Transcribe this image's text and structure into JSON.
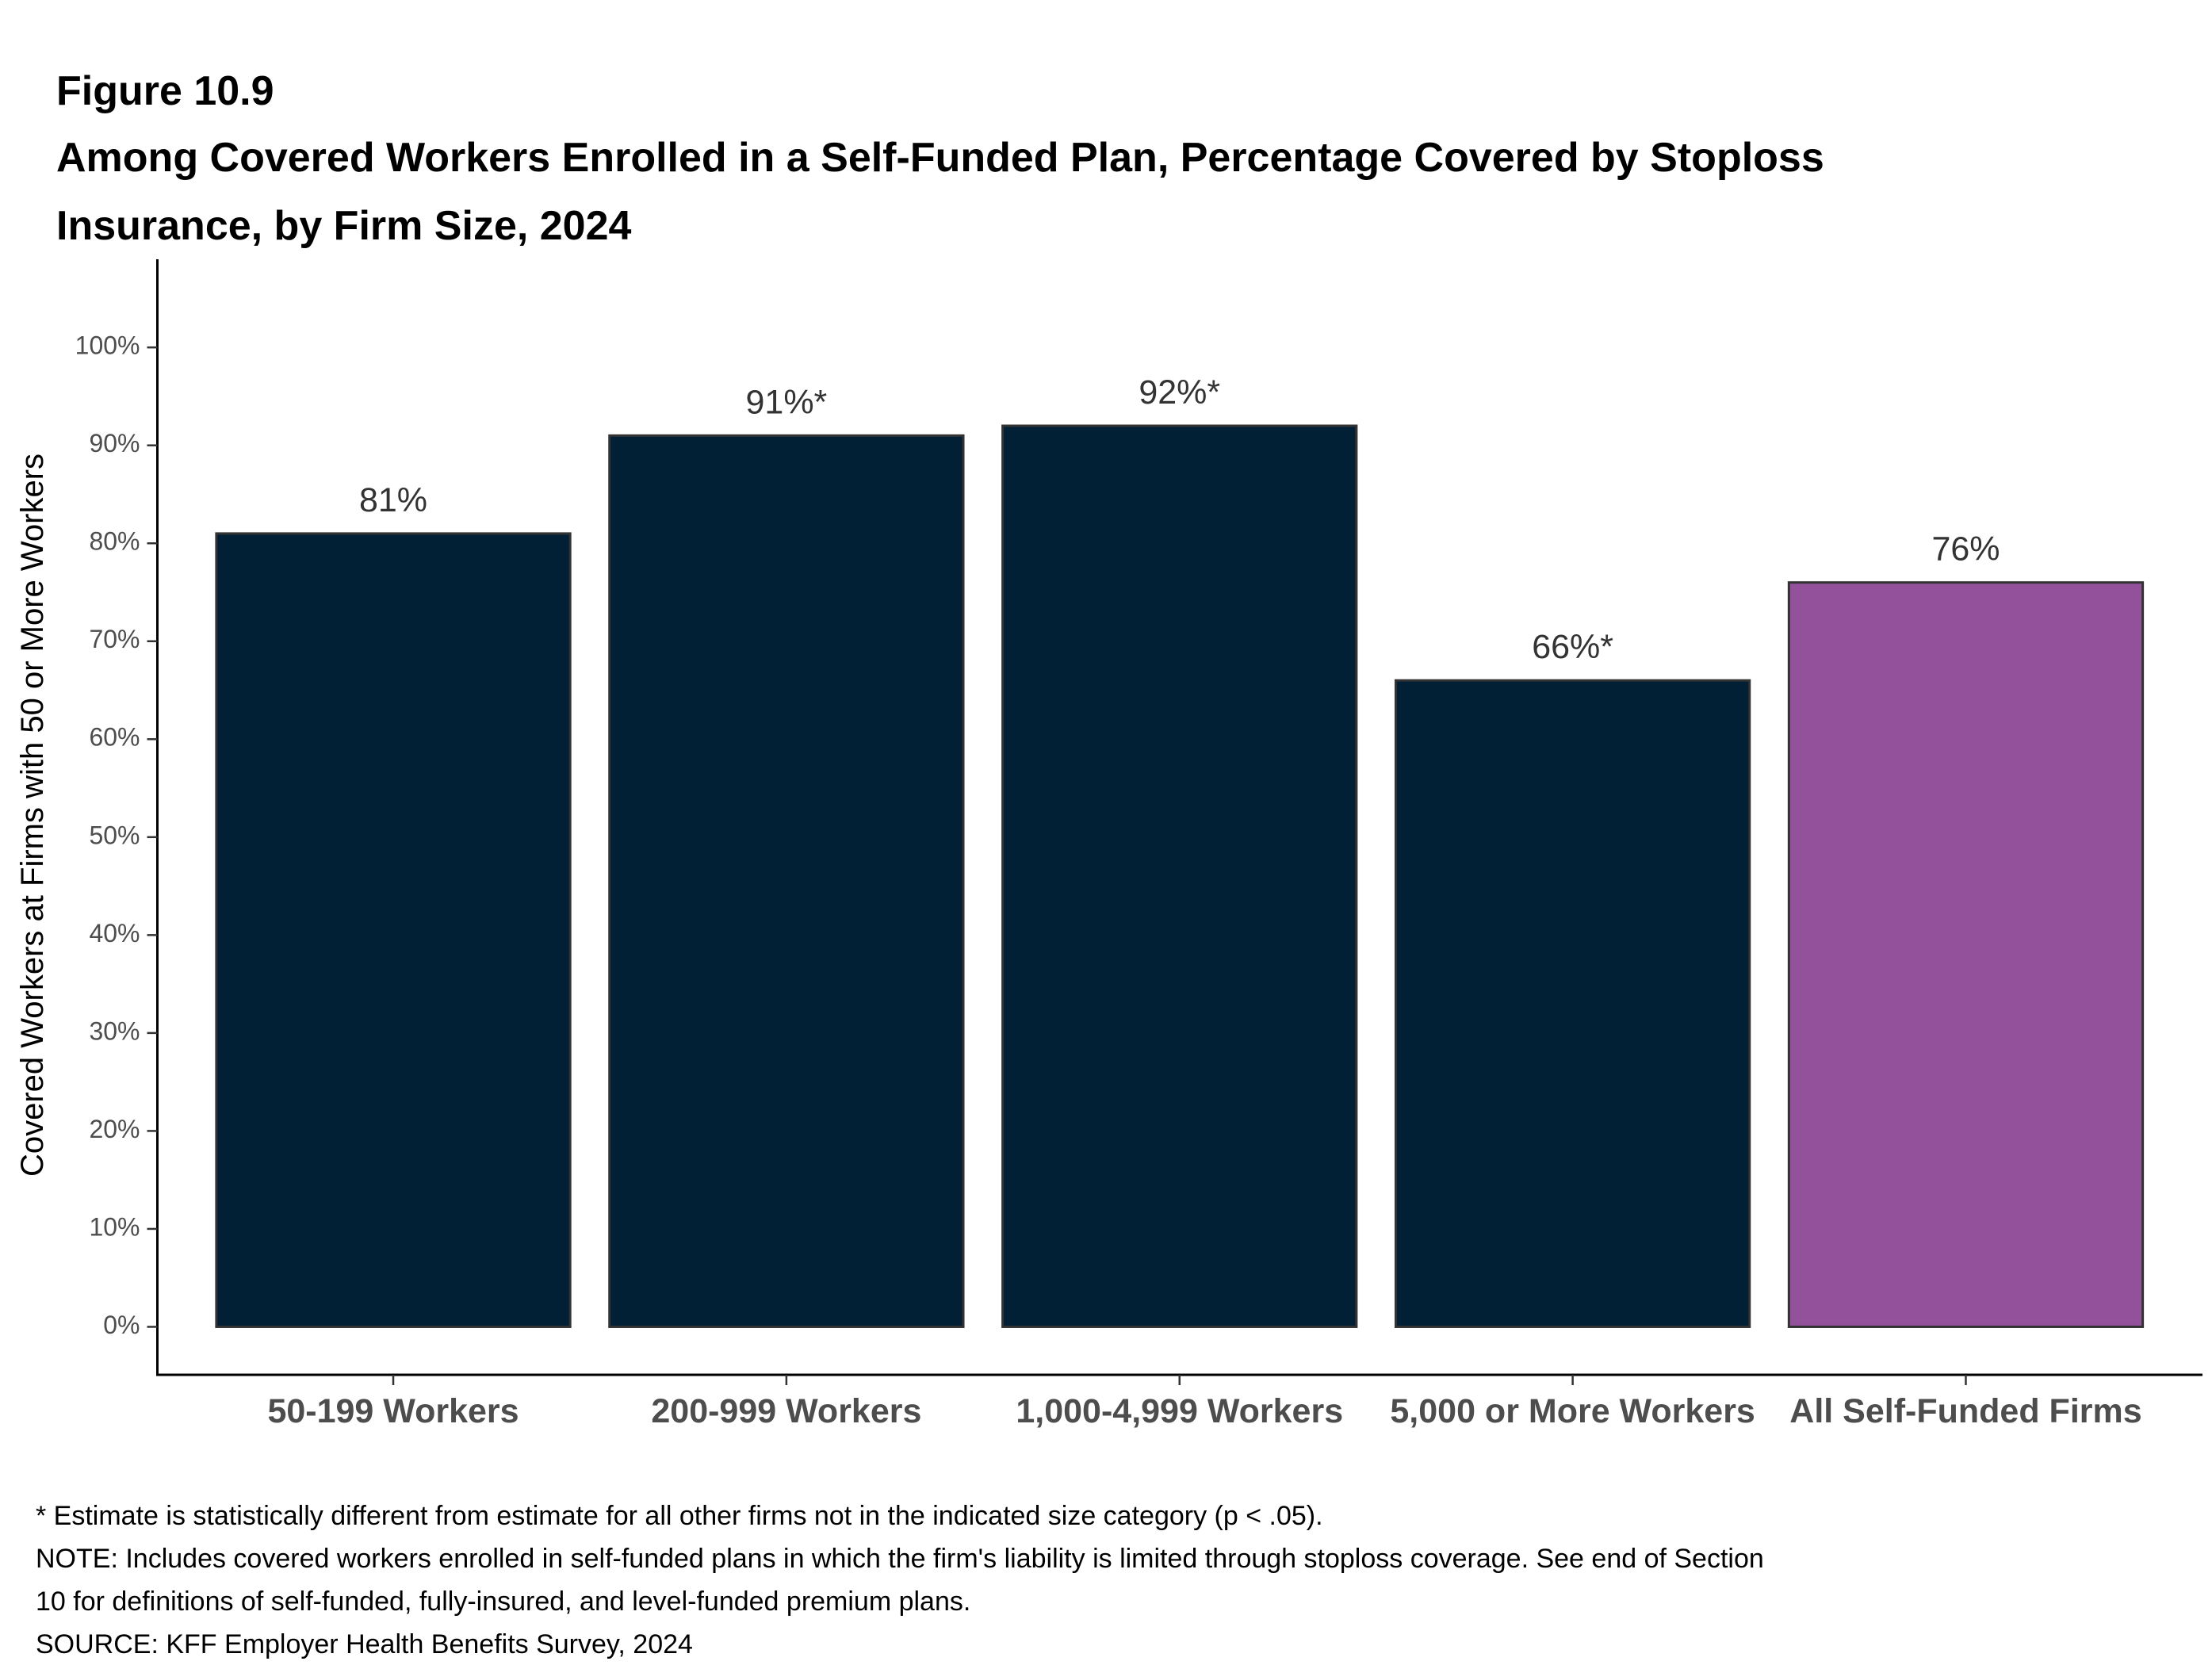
{
  "chart_data": {
    "type": "bar",
    "title": "Figure 10.9",
    "subtitle": [
      "Among Covered Workers Enrolled in a Self-Funded Plan, Percentage Covered by Stoploss",
      "Insurance, by Firm Size, 2024"
    ],
    "y_label": "Covered Workers at Firms with 50 or More Workers",
    "categories": [
      "50-199 Workers",
      "200-999 Workers",
      "1,000-4,999 Workers",
      "5,000 or More Workers",
      "All Self-Funded Firms"
    ],
    "values": [
      81,
      91,
      92,
      66,
      76
    ],
    "value_labels": [
      "81%",
      "91%*",
      "92%*",
      "66%*",
      "76%"
    ],
    "colors": [
      "#012035",
      "#012035",
      "#012035",
      "#012035",
      "#93519b"
    ],
    "ylim": [
      -4.9,
      109
    ],
    "yticks": [
      {
        "value": 0,
        "label": "0%"
      },
      {
        "value": 10,
        "label": "10%"
      },
      {
        "value": 20,
        "label": "20%"
      },
      {
        "value": 30,
        "label": "30%"
      },
      {
        "value": 40,
        "label": "40%"
      },
      {
        "value": 50,
        "label": "50%"
      },
      {
        "value": 60,
        "label": "60%"
      },
      {
        "value": 70,
        "label": "70%"
      },
      {
        "value": 80,
        "label": "80%"
      },
      {
        "value": 90,
        "label": "90%"
      },
      {
        "value": 100,
        "label": "100%"
      }
    ],
    "grid": false,
    "notes": [
      "* Estimate is statistically different from estimate for all other firms not in the indicated size category (p < .05).",
      "NOTE: Includes covered workers enrolled in self-funded plans in which the firm's liability is limited through stoploss coverage. See end of Section",
      "10 for definitions of self-funded, fully-insured, and level-funded premium plans.",
      "SOURCE: KFF Employer Health Benefits Survey, 2024"
    ]
  }
}
